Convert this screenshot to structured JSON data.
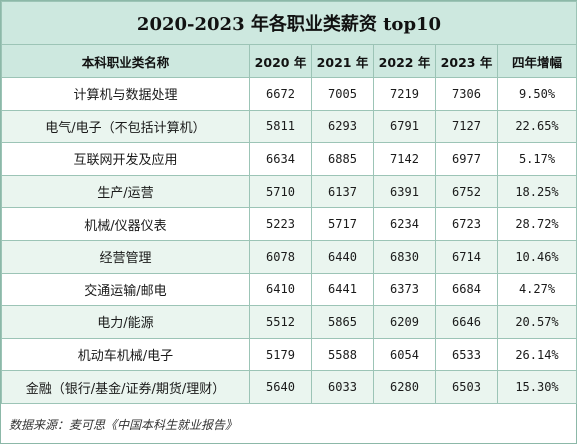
{
  "title": "2020-2023 年各职业类薪资 top10",
  "headers": [
    "本科职业类名称",
    "2020 年",
    "2021 年",
    "2022 年",
    "2023 年",
    "四年增幅"
  ],
  "rows": [
    {
      "name": "计算机与数据处理",
      "y2020": "6672",
      "y2021": "7005",
      "y2022": "7219",
      "y2023": "7306",
      "growth": "9.50%"
    },
    {
      "name": "电气/电子（不包括计算机）",
      "y2020": "5811",
      "y2021": "6293",
      "y2022": "6791",
      "y2023": "7127",
      "growth": "22.65%"
    },
    {
      "name": "互联网开发及应用",
      "y2020": "6634",
      "y2021": "6885",
      "y2022": "7142",
      "y2023": "6977",
      "growth": "5.17%"
    },
    {
      "name": "生产/运营",
      "y2020": "5710",
      "y2021": "6137",
      "y2022": "6391",
      "y2023": "6752",
      "growth": "18.25%"
    },
    {
      "name": "机械/仪器仪表",
      "y2020": "5223",
      "y2021": "5717",
      "y2022": "6234",
      "y2023": "6723",
      "growth": "28.72%"
    },
    {
      "name": "经营管理",
      "y2020": "6078",
      "y2021": "6440",
      "y2022": "6830",
      "y2023": "6714",
      "growth": "10.46%"
    },
    {
      "name": "交通运输/邮电",
      "y2020": "6410",
      "y2021": "6441",
      "y2022": "6373",
      "y2023": "6684",
      "growth": "4.27%"
    },
    {
      "name": "电力/能源",
      "y2020": "5512",
      "y2021": "5865",
      "y2022": "6209",
      "y2023": "6646",
      "growth": "20.57%"
    },
    {
      "name": "机动车机械/电子",
      "y2020": "5179",
      "y2021": "5588",
      "y2022": "6054",
      "y2023": "6533",
      "growth": "26.14%"
    },
    {
      "name": "金融（银行/基金/证券/期货/理财）",
      "y2020": "5640",
      "y2021": "6033",
      "y2022": "6280",
      "y2023": "6503",
      "growth": "15.30%"
    }
  ],
  "source": "数据来源：麦可思《中国本科生就业报告》",
  "colors": {
    "header_bg": "#cde8df",
    "alt_row_bg": "#eaf5ef",
    "border": "#9cc4b6"
  }
}
